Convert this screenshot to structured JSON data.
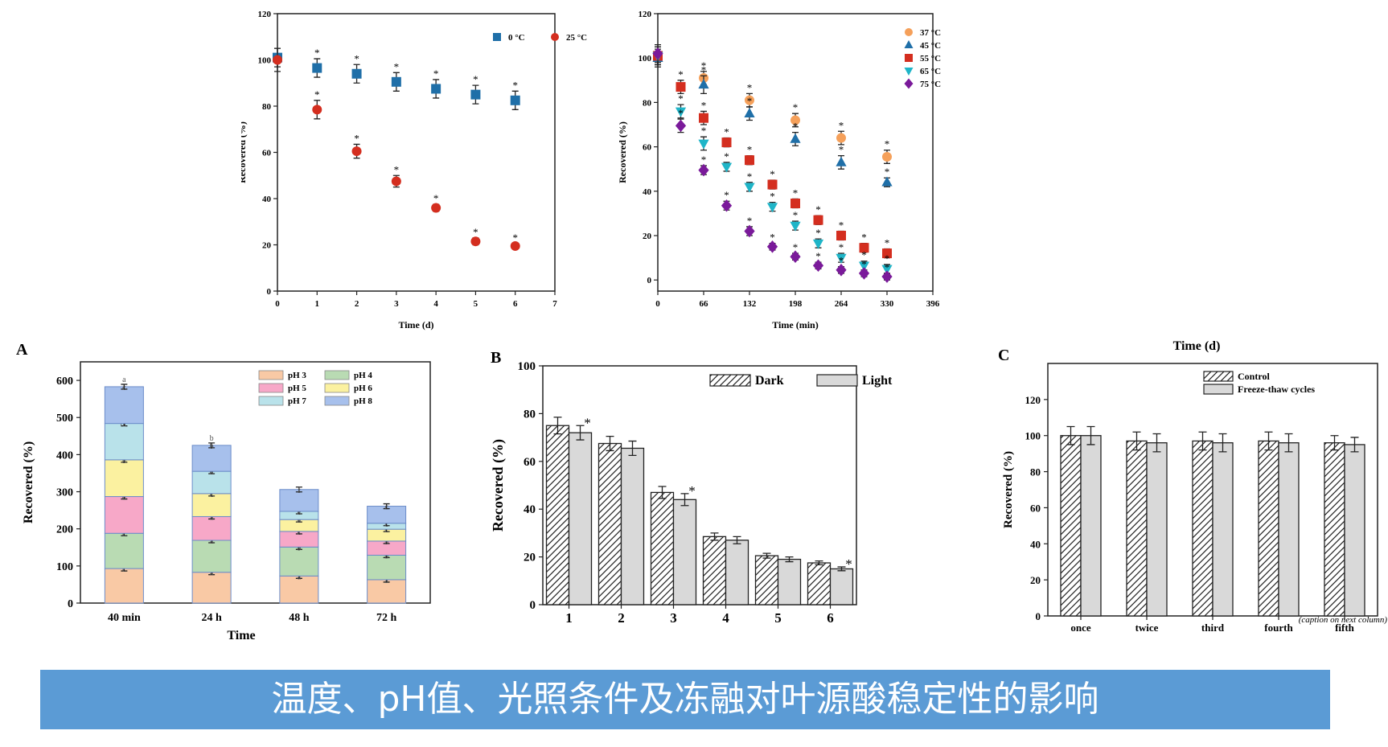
{
  "chart_data": [
    {
      "id": "temp_days",
      "type": "scatter",
      "title": "",
      "xlabel": "Time (d)",
      "ylabel": "Recovered (%)",
      "xlim": [
        0,
        7
      ],
      "ylim": [
        0,
        120
      ],
      "xticks": [
        0,
        1,
        2,
        3,
        4,
        5,
        6,
        7
      ],
      "yticks": [
        0,
        20,
        40,
        60,
        80,
        100,
        120
      ],
      "legend_position": "top-right",
      "x": [
        0,
        1,
        2,
        3,
        4,
        5,
        6
      ],
      "series": [
        {
          "name": "0 °C",
          "marker": "square",
          "color": "#1f6fa8",
          "values": [
            101,
            96.5,
            94,
            90.5,
            87.5,
            85,
            82.5
          ],
          "errors": [
            4,
            4,
            4,
            4,
            4,
            4,
            4
          ],
          "labels": [
            "",
            "*",
            "*",
            "*",
            "*",
            "*",
            "*"
          ]
        },
        {
          "name": "25 °C",
          "marker": "circle",
          "color": "#d42e1f",
          "values": [
            100,
            78.5,
            60.5,
            47.5,
            36,
            21.5,
            19.5
          ],
          "errors": [
            5,
            4,
            3,
            2.5,
            1.5,
            1.5,
            1
          ],
          "labels": [
            "",
            "*",
            "*",
            "*",
            "*",
            "*",
            "*"
          ]
        }
      ]
    },
    {
      "id": "temp_minutes",
      "type": "scatter",
      "title": "",
      "xlabel": "Time (min)",
      "ylabel": "Recovered (%)",
      "xlim": [
        0,
        396
      ],
      "ylim": [
        -5,
        120
      ],
      "xticks": [
        0,
        66,
        132,
        198,
        264,
        330,
        396
      ],
      "yticks": [
        0,
        20,
        40,
        60,
        80,
        100,
        120
      ],
      "legend_position": "top-right",
      "series": [
        {
          "name": "37 °C",
          "marker": "circle",
          "color": "#f5a05a",
          "x": [
            0,
            66,
            132,
            198,
            264,
            330
          ],
          "values": [
            101,
            91,
            81,
            72,
            64,
            55.5
          ],
          "errors": [
            4,
            3,
            3,
            3,
            3,
            3
          ],
          "labels": [
            "",
            "*",
            "*",
            "*",
            "*",
            "*"
          ]
        },
        {
          "name": "45 °C",
          "marker": "triangle-up",
          "color": "#1f6fa8",
          "x": [
            0,
            66,
            132,
            198,
            264,
            330
          ],
          "values": [
            100,
            88,
            75,
            63.5,
            53,
            44
          ],
          "errors": [
            4,
            4,
            3,
            3,
            3,
            2
          ],
          "labels": [
            "",
            "*",
            "*",
            "*",
            "*",
            "*"
          ]
        },
        {
          "name": "55 °C",
          "marker": "square",
          "color": "#d42e1f",
          "x": [
            0,
            33,
            66,
            99,
            132,
            165,
            198,
            231,
            264,
            297,
            330
          ],
          "values": [
            101,
            87,
            73,
            62,
            54,
            43,
            34.5,
            27,
            20,
            14.5,
            12
          ],
          "errors": [
            4,
            3,
            3,
            2,
            2,
            2,
            2,
            2,
            2,
            2,
            2
          ],
          "labels": [
            "",
            "*",
            "*",
            "*",
            "*",
            "*",
            "*",
            "*",
            "*",
            "*",
            "*"
          ]
        },
        {
          "name": "65 °C",
          "marker": "triangle-down",
          "color": "#1fb5c8",
          "x": [
            0,
            33,
            66,
            99,
            132,
            165,
            198,
            231,
            264,
            297,
            330
          ],
          "values": [
            101,
            76,
            61.5,
            51,
            42,
            33,
            24.5,
            16.5,
            10,
            6.5,
            5
          ],
          "errors": [
            4,
            3,
            3,
            2,
            2,
            2,
            2,
            2,
            2,
            2,
            2
          ],
          "labels": [
            "",
            "*",
            "*",
            "*",
            "*",
            "*",
            "*",
            "*",
            "*",
            "*",
            "*"
          ]
        },
        {
          "name": "75 °C",
          "marker": "diamond",
          "color": "#7a1a9a",
          "x": [
            0,
            33,
            66,
            99,
            132,
            165,
            198,
            231,
            264,
            297,
            330
          ],
          "values": [
            102,
            69.5,
            49.5,
            33.5,
            22,
            15,
            10.5,
            6.5,
            4.5,
            3,
            1.5
          ],
          "errors": [
            4,
            3,
            2,
            2,
            2,
            1.5,
            1.5,
            1.5,
            1.5,
            1.5,
            1.5
          ],
          "labels": [
            "",
            "*",
            "*",
            "*",
            "*",
            "*",
            "*",
            "*",
            "*",
            "*",
            "*"
          ]
        }
      ]
    },
    {
      "id": "ph",
      "panel_label": "A",
      "type": "bar",
      "stacked": true,
      "title": "",
      "xlabel": "Time",
      "ylabel": "Recovered (%)",
      "ylim": [
        0,
        650
      ],
      "yticks": [
        0,
        100,
        200,
        300,
        400,
        500,
        600
      ],
      "legend_position": "top-right",
      "categories": [
        "40 min",
        "24 h",
        "48 h",
        "72 h"
      ],
      "series": [
        {
          "name": "pH 3",
          "color": "#f9c9a5",
          "values": [
            93,
            83,
            73,
            63
          ],
          "labels": [
            "c",
            "a",
            "a",
            "a"
          ]
        },
        {
          "name": "pH 4",
          "color": "#b9dbb3",
          "values": [
            95,
            86,
            78,
            66
          ],
          "labels": [
            "c",
            "a",
            "b",
            "b"
          ]
        },
        {
          "name": "pH 5",
          "color": "#f7a8c8",
          "values": [
            99,
            64,
            42,
            38
          ],
          "labels": [
            "d",
            "a",
            "c",
            "b"
          ]
        },
        {
          "name": "pH 6",
          "color": "#fbf1a0",
          "values": [
            99,
            62,
            32,
            32
          ],
          "labels": [
            "b",
            "c",
            "d",
            "c"
          ]
        },
        {
          "name": "pH 7",
          "color": "#b9e2ea",
          "values": [
            98,
            60,
            22,
            16
          ],
          "labels": [
            "bc",
            "d",
            "e",
            "c"
          ]
        },
        {
          "name": "pH 8",
          "color": "#a7c0ec",
          "values": [
            99,
            70,
            59,
            46
          ],
          "labels": [
            "c",
            "b",
            "f",
            "c"
          ]
        }
      ],
      "top_labels": [
        "a",
        "b",
        "",
        ""
      ]
    },
    {
      "id": "light",
      "panel_label": "B",
      "type": "bar",
      "title": "",
      "xlabel": "",
      "ylabel": "Recovered (%)",
      "ylim": [
        0,
        100
      ],
      "yticks": [
        0,
        20,
        40,
        60,
        80,
        100
      ],
      "legend_position": "top-right",
      "categories": [
        "1",
        "2",
        "3",
        "4",
        "5",
        "6"
      ],
      "series": [
        {
          "name": "Dark",
          "pattern": "hatch",
          "values": [
            75,
            67.5,
            47,
            28.5,
            20.5,
            17.5
          ],
          "errors": [
            3.5,
            3,
            2.5,
            1.5,
            1,
            0.8
          ]
        },
        {
          "name": "Light",
          "pattern": "gray",
          "values": [
            72,
            65.5,
            44,
            27,
            19,
            15
          ],
          "errors": [
            3,
            3,
            2.5,
            1.5,
            1,
            0.8
          ],
          "labels": [
            "*",
            "",
            "*",
            "",
            "",
            "*"
          ]
        }
      ]
    },
    {
      "id": "freeze",
      "panel_label": "C",
      "type": "bar",
      "title": "Time (d)",
      "xlabel": "",
      "ylabel": "Recovered (%)",
      "ylim": [
        0,
        140
      ],
      "yticks": [
        0,
        20,
        40,
        60,
        80,
        100,
        120
      ],
      "legend_position": "top-right",
      "categories": [
        "once",
        "twice",
        "third",
        "fourth",
        "fifth"
      ],
      "series": [
        {
          "name": "Control",
          "pattern": "hatch",
          "values": [
            100,
            97,
            97,
            97,
            96
          ],
          "errors": [
            5,
            5,
            5,
            5,
            4
          ]
        },
        {
          "name": "Freeze-thaw cycles",
          "pattern": "gray",
          "values": [
            100,
            96,
            96,
            96,
            95
          ],
          "errors": [
            5,
            5,
            5,
            5,
            4
          ]
        }
      ],
      "footnote": "(caption on next column)"
    }
  ],
  "banner": {
    "text": "温度、pH值、光照条件及冻融对叶源酸稳定性的影响"
  }
}
